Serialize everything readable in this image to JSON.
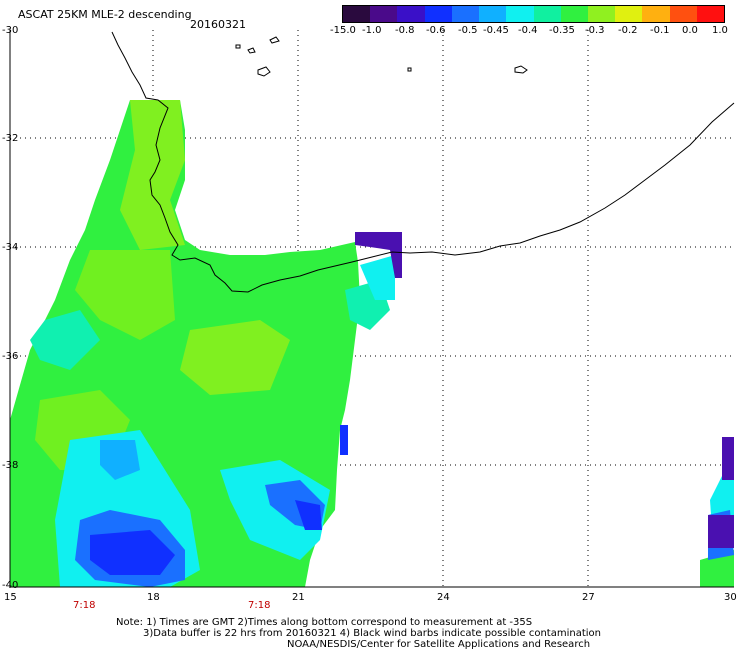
{
  "header": {
    "title": "ASCAT 25KM MLE-2 descending",
    "date": "20160321"
  },
  "colorbar": {
    "labels": [
      "-15.0",
      "-1.0",
      "-0.8",
      "-0.6",
      "-0.5",
      "-0.45",
      "-0.4",
      "-0.35",
      "-0.3",
      "-0.2",
      "-0.1",
      "0.0",
      "1.0"
    ],
    "colors": [
      "#2a0a3e",
      "#4a0a8a",
      "#3a10c8",
      "#1030ff",
      "#1a70ff",
      "#10b0ff",
      "#10f0f0",
      "#10f0a0",
      "#30f040",
      "#90f020",
      "#e0f010",
      "#ffb010",
      "#ff5010",
      "#ff1010"
    ]
  },
  "map": {
    "lat_ticks": [
      "-30",
      "-32",
      "-34",
      "-36",
      "-38",
      "-40"
    ],
    "lon_ticks": [
      "15",
      "18",
      "21",
      "24",
      "27",
      "30"
    ],
    "time_labels": [
      "7:18",
      "7:18"
    ]
  },
  "notes": {
    "line1": "Note: 1) Times are GMT 2)Times along bottom correspond to measurement at -35S",
    "line2": "3)Data buffer is 22 hrs from 20160321 4) Black wind barbs indicate possible contamination",
    "line3": "NOAA/NESDIS/Center for Satellite Applications and Research"
  }
}
